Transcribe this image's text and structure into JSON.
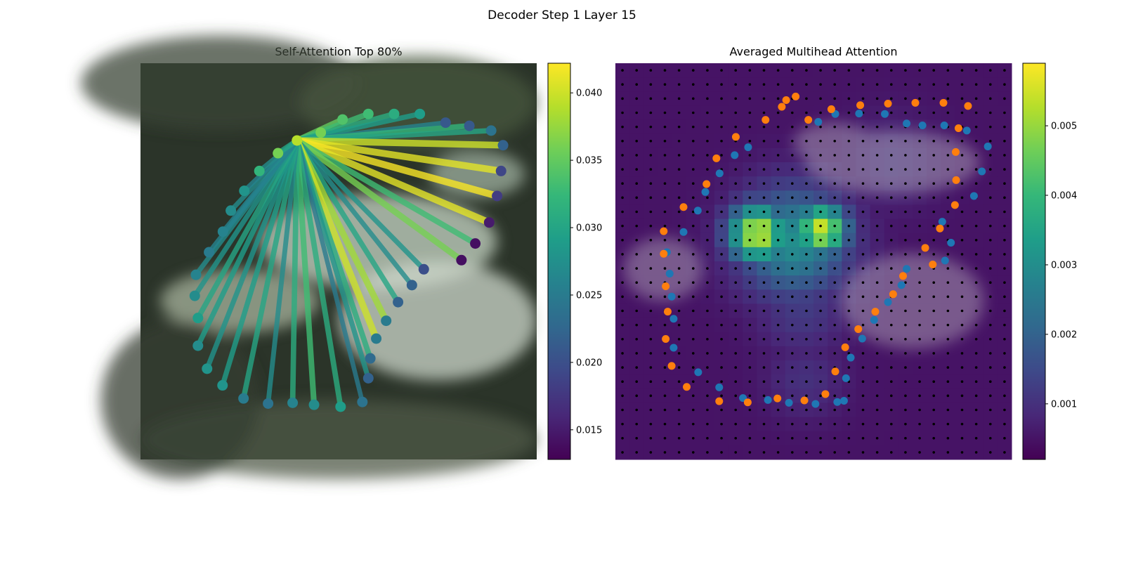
{
  "suptitle": "Decoder Step 1 Layer 15",
  "panels": [
    {
      "title": "Self-Attention Top 80%"
    },
    {
      "title": "Averaged Multihead Attention"
    }
  ],
  "colors": {
    "viridis": [
      "#440154",
      "#482878",
      "#3e4989",
      "#31688e",
      "#26828e",
      "#1f9e89",
      "#35b779",
      "#6ece58",
      "#b5de2b",
      "#fde725"
    ],
    "blue_points": "#1f77b4",
    "orange_points": "#ff7f0e"
  },
  "chart_data": [
    {
      "type": "network",
      "title": "Self-Attention Top 80%",
      "colorbar": {
        "vmin": 0.0128,
        "vmax": 0.0422,
        "ticks": [
          "0.015",
          "0.020",
          "0.025",
          "0.030",
          "0.035",
          "0.040"
        ],
        "tick_values": [
          0.015,
          0.02,
          0.025,
          0.03,
          0.035,
          0.04
        ]
      },
      "source_node": 0,
      "nodes": [
        {
          "x": 0.395,
          "y": 0.195,
          "v": 0.039
        },
        {
          "x": 0.455,
          "y": 0.175,
          "v": 0.036
        },
        {
          "x": 0.51,
          "y": 0.142,
          "v": 0.034
        },
        {
          "x": 0.575,
          "y": 0.128,
          "v": 0.033
        },
        {
          "x": 0.64,
          "y": 0.128,
          "v": 0.031
        },
        {
          "x": 0.705,
          "y": 0.128,
          "v": 0.029
        },
        {
          "x": 0.77,
          "y": 0.15,
          "v": 0.021
        },
        {
          "x": 0.83,
          "y": 0.158,
          "v": 0.021
        },
        {
          "x": 0.885,
          "y": 0.17,
          "v": 0.024
        },
        {
          "x": 0.915,
          "y": 0.207,
          "v": 0.022
        },
        {
          "x": 0.91,
          "y": 0.272,
          "v": 0.019
        },
        {
          "x": 0.9,
          "y": 0.335,
          "v": 0.018
        },
        {
          "x": 0.88,
          "y": 0.402,
          "v": 0.015
        },
        {
          "x": 0.845,
          "y": 0.455,
          "v": 0.014
        },
        {
          "x": 0.81,
          "y": 0.497,
          "v": 0.014
        },
        {
          "x": 0.715,
          "y": 0.52,
          "v": 0.02
        },
        {
          "x": 0.685,
          "y": 0.56,
          "v": 0.022
        },
        {
          "x": 0.65,
          "y": 0.603,
          "v": 0.022
        },
        {
          "x": 0.62,
          "y": 0.65,
          "v": 0.025
        },
        {
          "x": 0.595,
          "y": 0.695,
          "v": 0.025
        },
        {
          "x": 0.58,
          "y": 0.745,
          "v": 0.023
        },
        {
          "x": 0.575,
          "y": 0.795,
          "v": 0.022
        },
        {
          "x": 0.56,
          "y": 0.855,
          "v": 0.024
        },
        {
          "x": 0.505,
          "y": 0.867,
          "v": 0.029
        },
        {
          "x": 0.438,
          "y": 0.862,
          "v": 0.027
        },
        {
          "x": 0.384,
          "y": 0.857,
          "v": 0.026
        },
        {
          "x": 0.322,
          "y": 0.859,
          "v": 0.024
        },
        {
          "x": 0.26,
          "y": 0.846,
          "v": 0.025
        },
        {
          "x": 0.207,
          "y": 0.813,
          "v": 0.028
        },
        {
          "x": 0.168,
          "y": 0.771,
          "v": 0.028
        },
        {
          "x": 0.145,
          "y": 0.713,
          "v": 0.027
        },
        {
          "x": 0.145,
          "y": 0.643,
          "v": 0.029
        },
        {
          "x": 0.137,
          "y": 0.587,
          "v": 0.027
        },
        {
          "x": 0.14,
          "y": 0.534,
          "v": 0.026
        },
        {
          "x": 0.173,
          "y": 0.477,
          "v": 0.025
        },
        {
          "x": 0.208,
          "y": 0.425,
          "v": 0.026
        },
        {
          "x": 0.228,
          "y": 0.372,
          "v": 0.027
        },
        {
          "x": 0.262,
          "y": 0.322,
          "v": 0.028
        },
        {
          "x": 0.3,
          "y": 0.272,
          "v": 0.032
        },
        {
          "x": 0.347,
          "y": 0.227,
          "v": 0.036
        }
      ],
      "edges": [
        {
          "to": 1,
          "v": 0.037
        },
        {
          "to": 2,
          "v": 0.035
        },
        {
          "to": 3,
          "v": 0.033
        },
        {
          "to": 4,
          "v": 0.031
        },
        {
          "to": 5,
          "v": 0.029
        },
        {
          "to": 6,
          "v": 0.026
        },
        {
          "to": 7,
          "v": 0.032
        },
        {
          "to": 8,
          "v": 0.03
        },
        {
          "to": 9,
          "v": 0.04
        },
        {
          "to": 10,
          "v": 0.041
        },
        {
          "to": 11,
          "v": 0.042
        },
        {
          "to": 12,
          "v": 0.041
        },
        {
          "to": 13,
          "v": 0.033
        },
        {
          "to": 14,
          "v": 0.036
        },
        {
          "to": 15,
          "v": 0.028
        },
        {
          "to": 16,
          "v": 0.027
        },
        {
          "to": 17,
          "v": 0.03
        },
        {
          "to": 18,
          "v": 0.038
        },
        {
          "to": 19,
          "v": 0.04
        },
        {
          "to": 20,
          "v": 0.031
        },
        {
          "to": 21,
          "v": 0.028
        },
        {
          "to": 22,
          "v": 0.025
        },
        {
          "to": 23,
          "v": 0.031
        },
        {
          "to": 24,
          "v": 0.033
        },
        {
          "to": 25,
          "v": 0.031
        },
        {
          "to": 26,
          "v": 0.027
        },
        {
          "to": 27,
          "v": 0.03
        },
        {
          "to": 28,
          "v": 0.029
        },
        {
          "to": 29,
          "v": 0.028
        },
        {
          "to": 30,
          "v": 0.029
        },
        {
          "to": 31,
          "v": 0.03
        },
        {
          "to": 32,
          "v": 0.028
        },
        {
          "to": 33,
          "v": 0.027
        },
        {
          "to": 34,
          "v": 0.026
        },
        {
          "to": 35,
          "v": 0.026
        },
        {
          "to": 36,
          "v": 0.027
        },
        {
          "to": 37,
          "v": 0.026
        },
        {
          "to": 38,
          "v": 0.027
        },
        {
          "to": 39,
          "v": 0.03
        }
      ]
    },
    {
      "type": "heatmap",
      "title": "Averaged Multihead Attention",
      "colorbar": {
        "vmin": 0.0002,
        "vmax": 0.0059,
        "ticks": [
          "0.001",
          "0.002",
          "0.003",
          "0.004",
          "0.005"
        ],
        "tick_values": [
          0.001,
          0.002,
          0.003,
          0.004,
          0.005
        ]
      },
      "grid": [
        28,
        28
      ],
      "hotspots": [
        {
          "cx": 0.36,
          "cy": 0.43,
          "r": 0.09,
          "v": 0.0055
        },
        {
          "cx": 0.52,
          "cy": 0.42,
          "r": 0.08,
          "v": 0.0055
        },
        {
          "cx": 0.45,
          "cy": 0.45,
          "r": 0.17,
          "v": 0.003
        },
        {
          "cx": 0.47,
          "cy": 0.62,
          "r": 0.14,
          "v": 0.0012
        },
        {
          "cx": 0.48,
          "cy": 0.8,
          "r": 0.12,
          "v": 0.001
        },
        {
          "cx": 0.7,
          "cy": 0.25,
          "r": 0.15,
          "v": 0.0009
        }
      ],
      "blue_points": [
        [
          0.512,
          0.148
        ],
        [
          0.555,
          0.128
        ],
        [
          0.615,
          0.127
        ],
        [
          0.68,
          0.128
        ],
        [
          0.735,
          0.152
        ],
        [
          0.775,
          0.157
        ],
        [
          0.83,
          0.157
        ],
        [
          0.887,
          0.17
        ],
        [
          0.94,
          0.21
        ],
        [
          0.925,
          0.273
        ],
        [
          0.905,
          0.335
        ],
        [
          0.825,
          0.4
        ],
        [
          0.847,
          0.453
        ],
        [
          0.832,
          0.498
        ],
        [
          0.735,
          0.519
        ],
        [
          0.722,
          0.56
        ],
        [
          0.688,
          0.603
        ],
        [
          0.653,
          0.648
        ],
        [
          0.623,
          0.695
        ],
        [
          0.594,
          0.743
        ],
        [
          0.582,
          0.795
        ],
        [
          0.577,
          0.852
        ],
        [
          0.56,
          0.855
        ],
        [
          0.505,
          0.86
        ],
        [
          0.438,
          0.857
        ],
        [
          0.385,
          0.85
        ],
        [
          0.322,
          0.845
        ],
        [
          0.262,
          0.818
        ],
        [
          0.209,
          0.78
        ],
        [
          0.147,
          0.718
        ],
        [
          0.147,
          0.645
        ],
        [
          0.142,
          0.589
        ],
        [
          0.137,
          0.531
        ],
        [
          0.13,
          0.477
        ],
        [
          0.172,
          0.426
        ],
        [
          0.208,
          0.372
        ],
        [
          0.227,
          0.325
        ],
        [
          0.263,
          0.278
        ],
        [
          0.301,
          0.232
        ],
        [
          0.335,
          0.212
        ]
      ],
      "orange_points": [
        [
          0.487,
          0.143
        ],
        [
          0.545,
          0.116
        ],
        [
          0.618,
          0.106
        ],
        [
          0.688,
          0.102
        ],
        [
          0.757,
          0.1
        ],
        [
          0.828,
          0.1
        ],
        [
          0.89,
          0.108
        ],
        [
          0.866,
          0.164
        ],
        [
          0.859,
          0.224
        ],
        [
          0.86,
          0.295
        ],
        [
          0.857,
          0.358
        ],
        [
          0.819,
          0.417
        ],
        [
          0.782,
          0.466
        ],
        [
          0.801,
          0.508
        ],
        [
          0.726,
          0.537
        ],
        [
          0.701,
          0.583
        ],
        [
          0.656,
          0.627
        ],
        [
          0.613,
          0.671
        ],
        [
          0.58,
          0.717
        ],
        [
          0.555,
          0.778
        ],
        [
          0.53,
          0.835
        ],
        [
          0.477,
          0.851
        ],
        [
          0.409,
          0.846
        ],
        [
          0.334,
          0.856
        ],
        [
          0.262,
          0.853
        ],
        [
          0.18,
          0.817
        ],
        [
          0.142,
          0.764
        ],
        [
          0.127,
          0.696
        ],
        [
          0.132,
          0.627
        ],
        [
          0.127,
          0.563
        ],
        [
          0.122,
          0.481
        ],
        [
          0.122,
          0.424
        ],
        [
          0.172,
          0.363
        ],
        [
          0.23,
          0.305
        ],
        [
          0.255,
          0.24
        ],
        [
          0.304,
          0.186
        ],
        [
          0.379,
          0.143
        ],
        [
          0.42,
          0.11
        ],
        [
          0.431,
          0.093
        ],
        [
          0.455,
          0.084
        ]
      ]
    }
  ]
}
